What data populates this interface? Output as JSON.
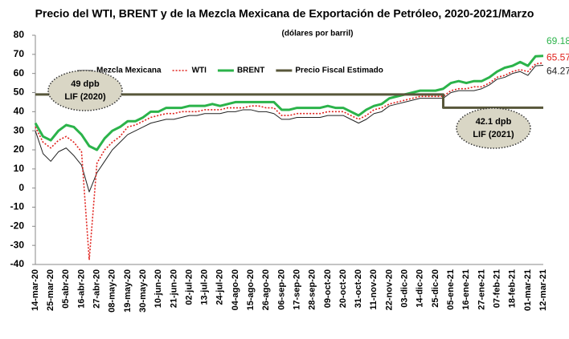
{
  "chart_data": {
    "type": "line",
    "title": "Precio del WTI, BRENT y de la Mezcla Mexicana de Exportación de Petróleo, 2020-2021/Marzo",
    "subtitle": "(dólares por barril)",
    "categories": [
      "14-mar-20",
      null,
      "25-mar-20",
      null,
      "05-abr-20",
      null,
      "16-abr-20",
      null,
      "27-abr-20",
      null,
      "08-may-20",
      null,
      "19-may-20",
      null,
      "30-may-20",
      null,
      "10-jun-20",
      null,
      "21-jun-20",
      null,
      "02-jul-20",
      null,
      "13-jul-20",
      null,
      "24-jul-20",
      null,
      "04-ago-20",
      null,
      "15-ago-20",
      null,
      "26-ago-20",
      null,
      "06-sep-20",
      null,
      "17-sep-20",
      null,
      "28-sep-20",
      null,
      "09-oct-20",
      null,
      "20-oct-20",
      null,
      "31-oct-20",
      null,
      "11-nov-20",
      null,
      "22-nov-20",
      null,
      "03-dic-20",
      null,
      "14-dic-20",
      null,
      "25-dic-20",
      null,
      "05-ene-21",
      null,
      "16-ene-21",
      null,
      "27-ene-21",
      null,
      "07-feb-21",
      null,
      "18-feb-21",
      null,
      "01-mar-21",
      null,
      "12-mar-21"
    ],
    "series": [
      {
        "name": "Mezcla Mexicana",
        "color": "#222222",
        "style": "thin",
        "last_value_label": true,
        "values": [
          30,
          18,
          14,
          19,
          21,
          17,
          12,
          -2,
          8,
          14,
          20,
          24,
          28,
          30,
          32,
          34,
          35,
          36,
          36,
          37,
          38,
          38,
          39,
          39,
          39,
          40,
          40,
          41,
          41,
          40,
          40,
          39,
          36,
          36,
          37,
          37,
          37,
          37,
          38,
          38,
          38,
          36,
          34,
          36,
          39,
          40,
          43,
          44,
          45,
          46,
          47,
          47,
          47,
          47,
          50,
          51,
          51,
          51,
          52,
          54,
          57,
          58,
          60,
          61,
          59,
          64,
          64.27
        ]
      },
      {
        "name": "WTI",
        "color": "#e0201b",
        "style": "dotted",
        "last_value_label": true,
        "values": [
          32,
          24,
          21,
          25,
          27,
          24,
          19,
          -37.6,
          13,
          20,
          24,
          27,
          32,
          33,
          35,
          37,
          38,
          39,
          39,
          40,
          40,
          40,
          41,
          41,
          41,
          42,
          42,
          42,
          43,
          43,
          42,
          42,
          38,
          38,
          39,
          39,
          39,
          39,
          40,
          40,
          40,
          38,
          36,
          38,
          41,
          42,
          44,
          45,
          46,
          47,
          48,
          48,
          48,
          48,
          51,
          52,
          52,
          53,
          53,
          55,
          58,
          59,
          61,
          62,
          61,
          65,
          65.57
        ]
      },
      {
        "name": "BRENT",
        "color": "#2bb34a",
        "style": "thick",
        "last_value_label": true,
        "values": [
          34,
          27,
          25,
          30,
          33,
          32,
          28,
          22,
          20,
          26,
          30,
          32,
          35,
          35,
          37,
          40,
          40,
          42,
          42,
          42,
          43,
          43,
          43,
          44,
          43,
          44,
          45,
          45,
          45,
          45,
          45,
          45,
          41,
          41,
          42,
          42,
          42,
          42,
          43,
          42,
          42,
          40,
          38,
          41,
          43,
          44,
          47,
          48,
          49,
          50,
          51,
          51,
          51,
          52,
          55,
          56,
          55,
          56,
          56,
          58,
          61,
          63,
          64,
          66,
          64,
          69,
          69.18
        ]
      },
      {
        "name": "Precio Fiscal Estimado",
        "color": "#58573a",
        "style": "thick",
        "step": true,
        "values": [
          49,
          49,
          49,
          49,
          49,
          49,
          49,
          49,
          49,
          49,
          49,
          49,
          49,
          49,
          49,
          49,
          49,
          49,
          49,
          49,
          49,
          49,
          49,
          49,
          49,
          49,
          49,
          49,
          49,
          49,
          49,
          49,
          49,
          49,
          49,
          49,
          49,
          49,
          49,
          49,
          49,
          49,
          49,
          49,
          49,
          49,
          49,
          49,
          49,
          49,
          49,
          49,
          49,
          42.1,
          42.1,
          42.1,
          42.1,
          42.1,
          42.1,
          42.1,
          42.1,
          42.1,
          42.1,
          42.1,
          42.1,
          42.1,
          42.1
        ]
      }
    ],
    "annotations": [
      {
        "lines": [
          "49 dpb",
          "LIF (2020)"
        ]
      },
      {
        "lines": [
          "42.1 dpb",
          "LIF (2021)"
        ]
      }
    ],
    "ylim": [
      -40,
      80
    ],
    "yticks": [
      -40,
      -30,
      -20,
      -10,
      0,
      10,
      20,
      30,
      40,
      50,
      60,
      70,
      80
    ],
    "grid": false,
    "legend": "top"
  }
}
